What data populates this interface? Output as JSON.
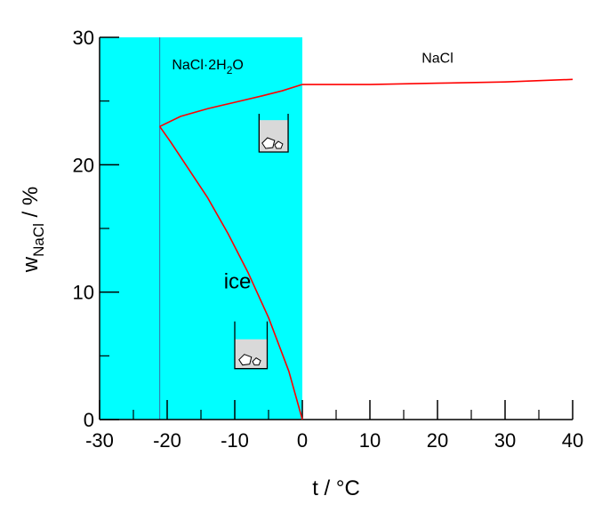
{
  "chart_data": {
    "type": "line",
    "title": "",
    "xlabel": "t / °C",
    "ylabel": {
      "base": "w",
      "sub": "NaCl",
      "rest": " / %"
    },
    "xlim": [
      -30,
      40
    ],
    "ylim": [
      0,
      30
    ],
    "x_ticks": [
      -30,
      -20,
      -10,
      0,
      10,
      20,
      30,
      40
    ],
    "y_ticks": [
      0,
      10,
      20,
      30
    ],
    "grid": false,
    "colors": {
      "shade": "#00ffff",
      "curve": "#ff0000",
      "guide": "#3a6ea5",
      "beaker_fill": "#d9d9d9"
    },
    "shaded_region": {
      "x_from": -30,
      "x_to": 0
    },
    "eutectic_line_x": -21.1,
    "series": [
      {
        "x": [
          -21.1,
          -19.5,
          -17,
          -14,
          -11,
          -8,
          -5,
          -2,
          0
        ],
        "y": [
          23.0,
          21.8,
          19.8,
          17.4,
          14.6,
          11.5,
          8.0,
          3.8,
          0
        ]
      },
      {
        "x": [
          -21.1,
          -18,
          -14,
          -10,
          -6,
          -3,
          0
        ],
        "y": [
          23.0,
          23.8,
          24.4,
          24.9,
          25.4,
          25.8,
          26.3
        ]
      },
      {
        "x": [
          0,
          10,
          20,
          30,
          40
        ],
        "y": [
          26.3,
          26.3,
          26.4,
          26.5,
          26.7
        ]
      }
    ],
    "annotations": {
      "dihydrate": {
        "base": "NaCl·2H",
        "sub": "2",
        "rest": "O",
        "x": -14,
        "y": 27.5
      },
      "nacl": {
        "text": "NaCl",
        "x": 20,
        "y": 28
      },
      "ice": {
        "text": "ice",
        "x": -9.6,
        "y": 10.3
      }
    },
    "beakers": [
      {
        "name": "dihydrate-beaker",
        "x_left": -6.4,
        "x_right": -2.1,
        "y_top": 24,
        "y_bottom": 21,
        "liquid_y": 23.5
      },
      {
        "name": "ice-beaker",
        "x_left": -10,
        "x_right": -5.2,
        "y_top": 7.7,
        "y_bottom": 4,
        "liquid_y": 6.3
      }
    ]
  }
}
